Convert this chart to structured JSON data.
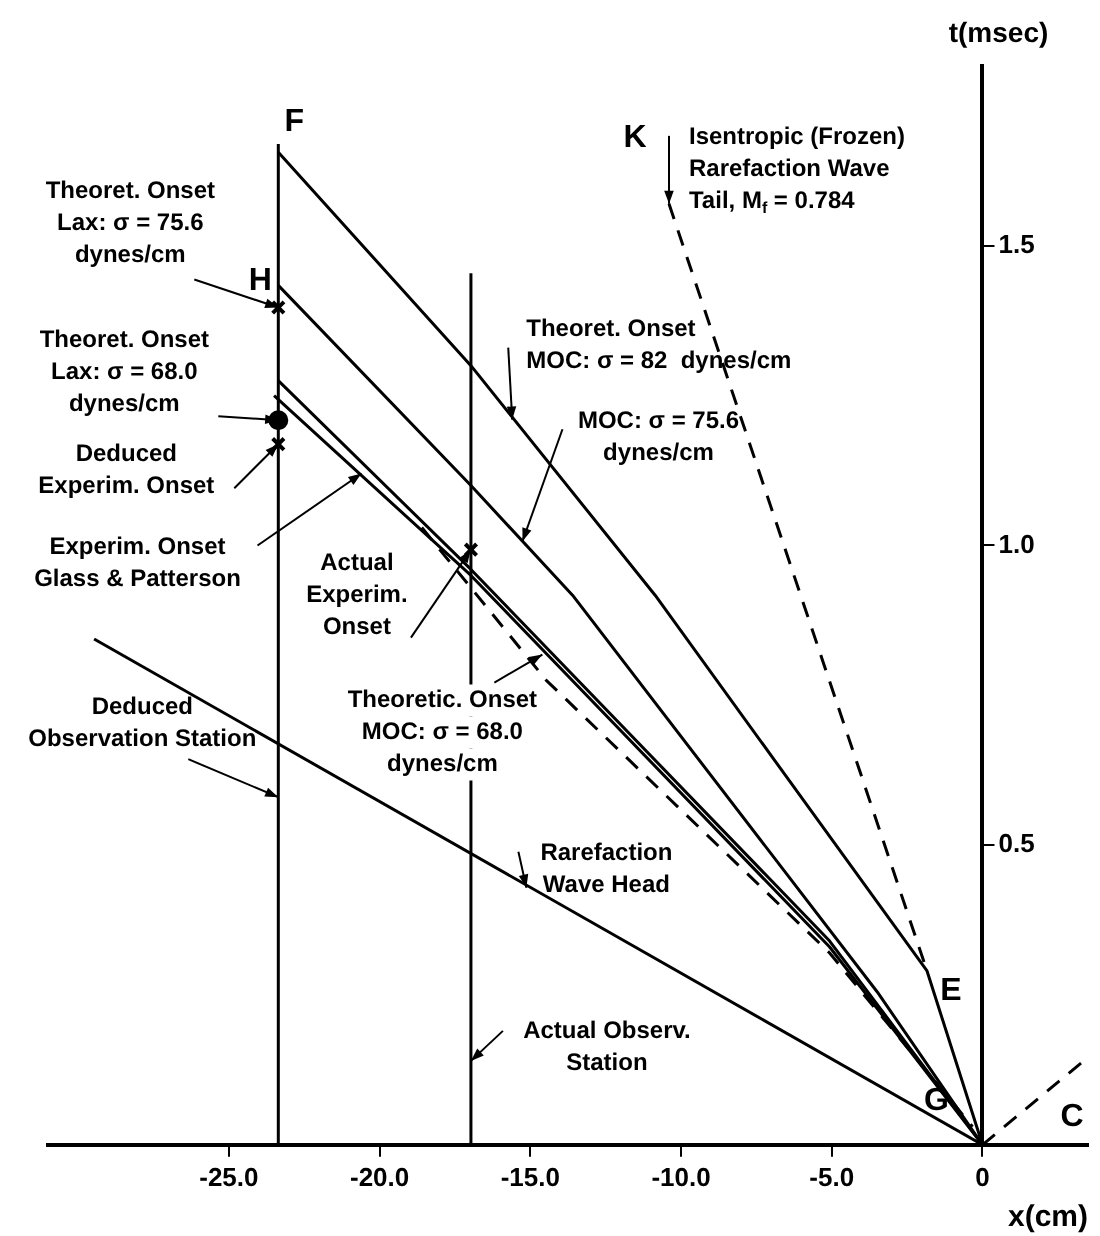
{
  "chart_data": {
    "type": "line",
    "xlabel": "x(cm)",
    "ylabel": "t(msec)",
    "xlim": [
      -31,
      3.5
    ],
    "ylim": [
      0,
      1.8
    ],
    "xticks": [
      {
        "value": -25,
        "label": "-25.0"
      },
      {
        "value": -20,
        "label": "-20.0"
      },
      {
        "value": -15,
        "label": "-15.0"
      },
      {
        "value": -10,
        "label": "-10.0"
      },
      {
        "value": -5,
        "label": "-5.0"
      },
      0
    ],
    "yticks": [
      0.5,
      {
        "value": 1,
        "label": "1.0"
      },
      1.5
    ],
    "grid": false,
    "legend": false,
    "marker": "none",
    "series": [
      {
        "type": "line",
        "color": "#000000",
        "x": [
          -23.36,
          -23.36
        ],
        "values": [
          0,
          1.67
        ]
      },
      {
        "type": "line",
        "color": "#000000",
        "x": [
          -16.97,
          -16.97
        ],
        "values": [
          0,
          1.454
        ]
      },
      {
        "type": "line",
        "color": "#000000",
        "x": [
          -23.36,
          -16.97,
          -10.86,
          -1.84,
          0
        ],
        "values": [
          1.656,
          1.3,
          0.917,
          0.29,
          0
        ]
      },
      {
        "type": "line",
        "color": "#000000",
        "x": [
          -23.36,
          -16.97,
          -13.6,
          -3.49,
          0
        ],
        "values": [
          1.434,
          1.1,
          0.917,
          0.255,
          0
        ]
      },
      {
        "type": "line",
        "color": "#000000",
        "x": [
          -23.36,
          -16.97,
          -5.07,
          0
        ],
        "values": [
          1.275,
          0.96,
          0.34,
          0
        ]
      },
      {
        "type": "line",
        "color": "#000000",
        "x": [
          -23.5,
          -16.97,
          -5.07,
          0
        ],
        "values": [
          1.25,
          0.95,
          0.33,
          0
        ]
      },
      {
        "type": "line",
        "color": "#000000",
        "line_style": "dashed",
        "x": [
          -18.6,
          -14.47,
          -5.07,
          -0.33
        ],
        "values": [
          1.03,
          0.775,
          0.32,
          0.03
        ]
      },
      {
        "type": "line",
        "color": "#000000",
        "x": [
          -29.47,
          0
        ],
        "values": [
          0.844,
          0
        ]
      },
      {
        "type": "line",
        "color": "#000000",
        "line_style": "dashed",
        "x": [
          -10.4,
          -1.84
        ],
        "values": [
          1.57,
          0.29
        ]
      },
      {
        "type": "line",
        "color": "#000000",
        "line_style": "dashed",
        "x": [
          0,
          3.5
        ],
        "values": [
          0,
          0.146
        ]
      },
      {
        "type": "scatter",
        "color": "#000000",
        "marker": "cross",
        "x": [
          -23.36,
          -23.36,
          -16.97
        ],
        "values": [
          1.397,
          1.169,
          0.993
        ]
      },
      {
        "type": "scatter",
        "color": "#000000",
        "marker": "circle",
        "x": [
          -23.36
        ],
        "values": [
          1.209
        ]
      }
    ],
    "annotations": [
      {
        "text": "F",
        "x": -23.36,
        "y": 1.67
      },
      {
        "text": "H",
        "x": -23.36,
        "y": 1.434
      },
      {
        "text": "K",
        "x": -10.4,
        "y": 1.57
      },
      {
        "text": "E",
        "x": -1.84,
        "y": 0.29
      },
      {
        "text": "G",
        "x": -0.33,
        "y": 0.03
      },
      {
        "text": "C",
        "x": 3.5,
        "y": 0.146
      },
      {
        "text": "Theoret. Onset\nLax: σ = 75.6\ndynes/cm",
        "x": -23.36,
        "y": 1.397
      },
      {
        "text": "Theoret. Onset\nLax: σ = 68.0\ndynes/cm",
        "x": -23.36,
        "y": 1.209
      },
      {
        "text": "Deduced\nExperim. Onset",
        "x": -23.36,
        "y": 1.169
      },
      {
        "text": "Experim. Onset\nGlass & Patterson",
        "x": -20.6,
        "y": 1.12
      },
      {
        "text": "Actual\nExperim.\nOnset",
        "x": -16.97,
        "y": 0.993
      },
      {
        "text": "Theoretic. Onset\nMOC: σ = 68.0\ndynes/cm",
        "x": -14.6,
        "y": 0.818
      },
      {
        "text": "Deduced\nObservation Station",
        "x": -23.36,
        "y": 0.58
      },
      {
        "text": "Rarefaction\nWave Head",
        "x": -15.13,
        "y": 0.429
      },
      {
        "text": "Actual Observ.\nStation",
        "x": -16.97,
        "y": 0.14
      },
      {
        "text": "Theoret. Onset\nMOC: σ = 82  dynes/cm",
        "x": -15.6,
        "y": 1.21
      },
      {
        "text": "MOC: σ = 75.6\ndynes/cm",
        "x": -15.26,
        "y": 1.007
      },
      {
        "text": "Isentropic (Frozen)\nRarefaction Wave\nTail, M$_{f}$ = 0.784",
        "x": -10.4,
        "y": 1.57
      }
    ]
  }
}
